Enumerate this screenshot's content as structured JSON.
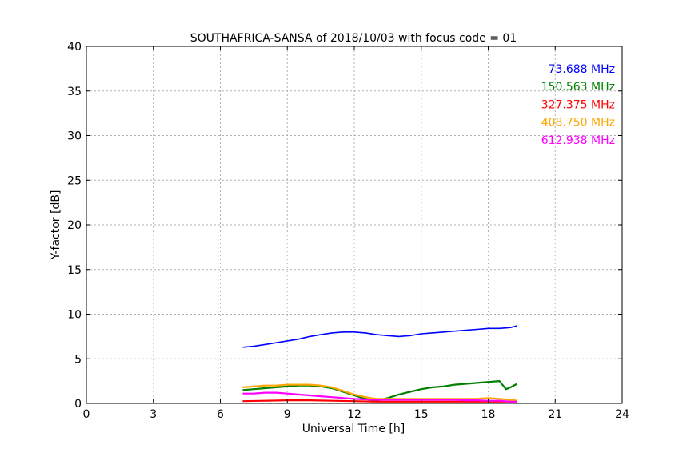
{
  "chart_data": {
    "type": "line",
    "title": "SOUTHAFRICA-SANSA of 2018/10/03 with focus code = 01",
    "xlabel": "Universal Time [h]",
    "ylabel": "Y-factor [dB]",
    "xlim": [
      0,
      24
    ],
    "ylim": [
      0,
      40
    ],
    "xticks": [
      0,
      3,
      6,
      9,
      12,
      15,
      18,
      21,
      24
    ],
    "yticks": [
      0,
      5,
      10,
      15,
      20,
      25,
      30,
      35,
      40
    ],
    "grid": true,
    "legend_position": "top-right",
    "series": [
      {
        "name": "73.688 MHz",
        "color": "#0000ff",
        "x": [
          7.0,
          7.5,
          8.0,
          8.5,
          9.0,
          9.5,
          10.0,
          10.5,
          11.0,
          11.5,
          12.0,
          12.5,
          13.0,
          13.5,
          14.0,
          14.5,
          15.0,
          15.5,
          16.0,
          16.5,
          17.0,
          17.5,
          18.0,
          18.5,
          19.0,
          19.3
        ],
        "values": [
          6.3,
          6.4,
          6.6,
          6.8,
          7.0,
          7.2,
          7.5,
          7.7,
          7.9,
          8.0,
          8.0,
          7.9,
          7.7,
          7.6,
          7.5,
          7.6,
          7.8,
          7.9,
          8.0,
          8.1,
          8.2,
          8.3,
          8.4,
          8.4,
          8.5,
          8.7
        ]
      },
      {
        "name": "150.563 MHz",
        "color": "#008000",
        "x": [
          7.0,
          7.5,
          8.0,
          8.5,
          9.0,
          9.5,
          10.0,
          10.5,
          11.0,
          11.5,
          12.0,
          12.5,
          13.0,
          13.5,
          14.0,
          14.5,
          15.0,
          15.5,
          16.0,
          16.5,
          17.0,
          17.5,
          18.0,
          18.5,
          18.8,
          19.0,
          19.3
        ],
        "values": [
          1.5,
          1.6,
          1.7,
          1.8,
          1.9,
          2.0,
          2.0,
          1.9,
          1.7,
          1.3,
          0.9,
          0.5,
          0.3,
          0.6,
          1.0,
          1.3,
          1.6,
          1.8,
          1.9,
          2.1,
          2.2,
          2.3,
          2.4,
          2.5,
          1.6,
          1.8,
          2.2
        ]
      },
      {
        "name": "327.375 MHz",
        "color": "#ff0000",
        "x": [
          7.0,
          8.0,
          9.0,
          10.0,
          11.0,
          12.0,
          13.0,
          14.0,
          15.0,
          16.0,
          17.0,
          18.0,
          19.0,
          19.3
        ],
        "values": [
          0.25,
          0.3,
          0.35,
          0.35,
          0.3,
          0.25,
          0.2,
          0.2,
          0.2,
          0.2,
          0.2,
          0.2,
          0.2,
          0.2
        ]
      },
      {
        "name": "408.750 MHz",
        "color": "#ffa500",
        "x": [
          7.0,
          7.5,
          8.0,
          8.5,
          9.0,
          9.5,
          10.0,
          10.5,
          11.0,
          11.5,
          12.0,
          12.5,
          13.0,
          13.5,
          14.0,
          14.5,
          15.0,
          15.5,
          16.0,
          16.5,
          17.0,
          17.5,
          18.0,
          18.5,
          19.0,
          19.3
        ],
        "values": [
          1.8,
          1.9,
          2.0,
          2.0,
          2.1,
          2.1,
          2.1,
          2.0,
          1.8,
          1.4,
          1.0,
          0.7,
          0.5,
          0.5,
          0.5,
          0.5,
          0.5,
          0.5,
          0.5,
          0.5,
          0.5,
          0.5,
          0.6,
          0.5,
          0.4,
          0.3
        ]
      },
      {
        "name": "612.938 MHz",
        "color": "#ff00ff",
        "x": [
          7.0,
          7.5,
          8.0,
          8.5,
          9.0,
          9.5,
          10.0,
          10.5,
          11.0,
          11.5,
          12.0,
          12.5,
          13.0,
          13.5,
          14.0,
          14.5,
          15.0,
          15.5,
          16.0,
          16.5,
          17.0,
          17.5,
          18.0,
          18.5,
          19.0,
          19.3
        ],
        "values": [
          1.1,
          1.1,
          1.2,
          1.2,
          1.1,
          1.0,
          0.9,
          0.8,
          0.7,
          0.6,
          0.5,
          0.45,
          0.4,
          0.4,
          0.4,
          0.4,
          0.4,
          0.4,
          0.4,
          0.4,
          0.35,
          0.35,
          0.3,
          0.3,
          0.2,
          0.2
        ]
      }
    ]
  }
}
